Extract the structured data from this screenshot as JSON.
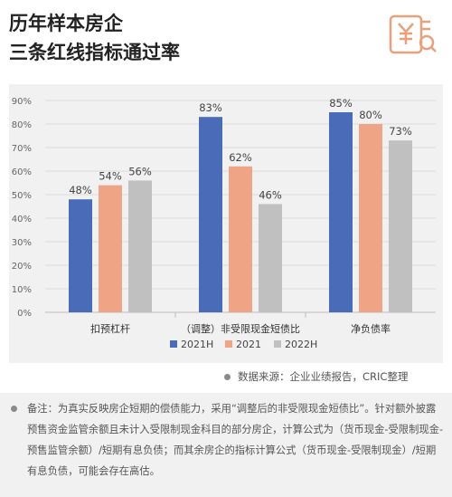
{
  "title": {
    "line1": "历年样本房企",
    "line2": "三条红线指标通过率"
  },
  "icons": {
    "logo": "yen-document-magnifier-icon",
    "accent": "#e8a07d"
  },
  "chart_data": {
    "type": "bar",
    "categories": [
      "扣预杠杆",
      "（调整）非受限现金短债比",
      "净负债率"
    ],
    "series": [
      {
        "name": "2021H",
        "color": "#4a6cb8",
        "values": [
          48,
          83,
          85
        ]
      },
      {
        "name": "2021",
        "color": "#f0a486",
        "values": [
          54,
          62,
          80
        ]
      },
      {
        "name": "2022H",
        "color": "#c0c0c0",
        "values": [
          56,
          46,
          73
        ]
      }
    ],
    "ylim": [
      0,
      90
    ],
    "yticks": [
      "0%",
      "10%",
      "20%",
      "30%",
      "40%",
      "50%",
      "60%",
      "70%",
      "80%",
      "90%"
    ],
    "value_suffix": "%",
    "grid": true,
    "legend": "bottom-center",
    "title": "",
    "xlabel": "",
    "ylabel": ""
  },
  "source": "数据来源：企业业绩报告，CRIC整理",
  "note": "备注：为真实反映房企短期的偿债能力，采用“调整后的非受限现金短债比”。针对额外披露预售资金监管余额且未计入受限制现金科目的部分房企，计算公式为（货币现金-受限制现金-预售监管余额）/短期有息负债；而其余房企的指标计算公式（货币现金-受限制现金）/短期有息负债，可能会存在高估。"
}
